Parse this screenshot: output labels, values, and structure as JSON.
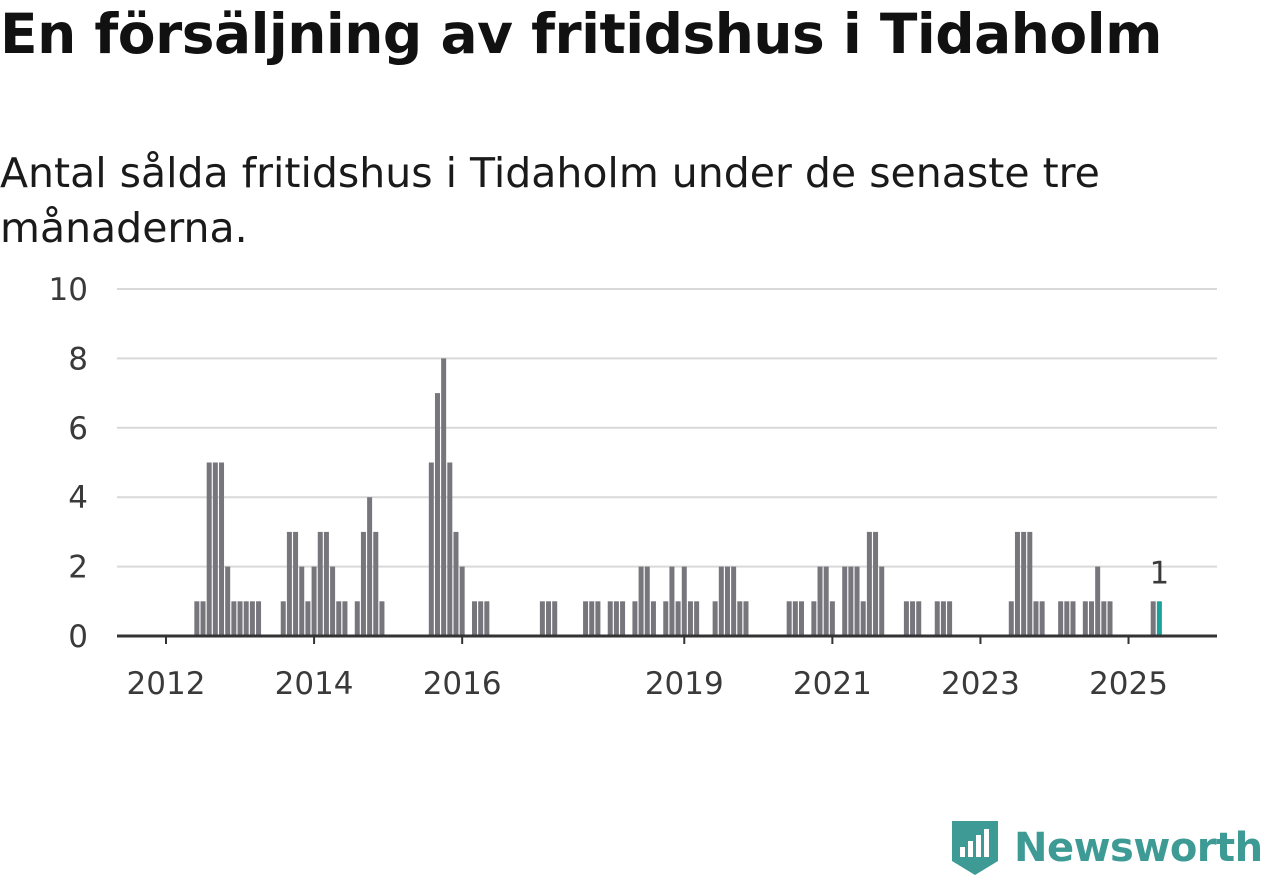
{
  "page": {
    "title": "En försäljning av fritidshus i Tidaholm",
    "subtitle": "Antal sålda fritidshus i Tidaholm under de senaste tre månaderna.",
    "brand": "Newsworthy"
  },
  "colors": {
    "bar": "#77767c",
    "highlight": "#1aa39b",
    "grid": "#d9d9d9",
    "axis": "#333333",
    "brand": "#3d9a94"
  },
  "icons": {
    "brand_logo": "newsworthy-logo-icon"
  },
  "chart_data": {
    "type": "bar",
    "title": "En försäljning av fritidshus i Tidaholm",
    "subtitle": "Antal sålda fritidshus i Tidaholm under de senaste tre månaderna.",
    "xlabel": "",
    "ylabel": "",
    "ylim": [
      0,
      10
    ],
    "y_ticks": [
      0,
      2,
      4,
      6,
      8,
      10
    ],
    "x_ticks": [
      {
        "label": "2012",
        "x": "2012-01"
      },
      {
        "label": "2014",
        "x": "2014-01"
      },
      {
        "label": "2016",
        "x": "2016-01"
      },
      {
        "label": "2019",
        "x": "2019-01"
      },
      {
        "label": "2021",
        "x": "2021-01"
      },
      {
        "label": "2023",
        "x": "2023-01"
      },
      {
        "label": "2025",
        "x": "2025-01"
      }
    ],
    "grid": true,
    "legend": "none",
    "highlight": {
      "x": "2025-06",
      "value": 1,
      "label": "1"
    },
    "series": [
      {
        "values": [
          {
            "x": "2012-06",
            "y": 1
          },
          {
            "x": "2012-07",
            "y": 1
          },
          {
            "x": "2012-08",
            "y": 5
          },
          {
            "x": "2012-09",
            "y": 5
          },
          {
            "x": "2012-10",
            "y": 5
          },
          {
            "x": "2012-11",
            "y": 2
          },
          {
            "x": "2012-12",
            "y": 1
          },
          {
            "x": "2013-01",
            "y": 1
          },
          {
            "x": "2013-02",
            "y": 1
          },
          {
            "x": "2013-03",
            "y": 1
          },
          {
            "x": "2013-04",
            "y": 1
          },
          {
            "x": "2013-08",
            "y": 1
          },
          {
            "x": "2013-09",
            "y": 3
          },
          {
            "x": "2013-10",
            "y": 3
          },
          {
            "x": "2013-11",
            "y": 2
          },
          {
            "x": "2013-12",
            "y": 1
          },
          {
            "x": "2014-01",
            "y": 2
          },
          {
            "x": "2014-02",
            "y": 3
          },
          {
            "x": "2014-03",
            "y": 3
          },
          {
            "x": "2014-04",
            "y": 2
          },
          {
            "x": "2014-05",
            "y": 1
          },
          {
            "x": "2014-06",
            "y": 1
          },
          {
            "x": "2014-08",
            "y": 1
          },
          {
            "x": "2014-09",
            "y": 3
          },
          {
            "x": "2014-10",
            "y": 4
          },
          {
            "x": "2014-11",
            "y": 3
          },
          {
            "x": "2014-12",
            "y": 1
          },
          {
            "x": "2015-08",
            "y": 5
          },
          {
            "x": "2015-09",
            "y": 7
          },
          {
            "x": "2015-10",
            "y": 8
          },
          {
            "x": "2015-11",
            "y": 5
          },
          {
            "x": "2015-12",
            "y": 3
          },
          {
            "x": "2016-01",
            "y": 2
          },
          {
            "x": "2016-03",
            "y": 1
          },
          {
            "x": "2016-04",
            "y": 1
          },
          {
            "x": "2016-05",
            "y": 1
          },
          {
            "x": "2017-02",
            "y": 1
          },
          {
            "x": "2017-03",
            "y": 1
          },
          {
            "x": "2017-04",
            "y": 1
          },
          {
            "x": "2017-09",
            "y": 1
          },
          {
            "x": "2017-10",
            "y": 1
          },
          {
            "x": "2017-11",
            "y": 1
          },
          {
            "x": "2018-01",
            "y": 1
          },
          {
            "x": "2018-02",
            "y": 1
          },
          {
            "x": "2018-03",
            "y": 1
          },
          {
            "x": "2018-05",
            "y": 1
          },
          {
            "x": "2018-06",
            "y": 2
          },
          {
            "x": "2018-07",
            "y": 2
          },
          {
            "x": "2018-08",
            "y": 1
          },
          {
            "x": "2018-10",
            "y": 1
          },
          {
            "x": "2018-11",
            "y": 2
          },
          {
            "x": "2018-12",
            "y": 1
          },
          {
            "x": "2019-01",
            "y": 2
          },
          {
            "x": "2019-02",
            "y": 1
          },
          {
            "x": "2019-03",
            "y": 1
          },
          {
            "x": "2019-06",
            "y": 1
          },
          {
            "x": "2019-07",
            "y": 2
          },
          {
            "x": "2019-08",
            "y": 2
          },
          {
            "x": "2019-09",
            "y": 2
          },
          {
            "x": "2019-10",
            "y": 1
          },
          {
            "x": "2019-11",
            "y": 1
          },
          {
            "x": "2020-06",
            "y": 1
          },
          {
            "x": "2020-07",
            "y": 1
          },
          {
            "x": "2020-08",
            "y": 1
          },
          {
            "x": "2020-10",
            "y": 1
          },
          {
            "x": "2020-11",
            "y": 2
          },
          {
            "x": "2020-12",
            "y": 2
          },
          {
            "x": "2021-01",
            "y": 1
          },
          {
            "x": "2021-03",
            "y": 2
          },
          {
            "x": "2021-04",
            "y": 2
          },
          {
            "x": "2021-05",
            "y": 2
          },
          {
            "x": "2021-06",
            "y": 1
          },
          {
            "x": "2021-07",
            "y": 3
          },
          {
            "x": "2021-08",
            "y": 3
          },
          {
            "x": "2021-09",
            "y": 2
          },
          {
            "x": "2022-01",
            "y": 1
          },
          {
            "x": "2022-02",
            "y": 1
          },
          {
            "x": "2022-03",
            "y": 1
          },
          {
            "x": "2022-06",
            "y": 1
          },
          {
            "x": "2022-07",
            "y": 1
          },
          {
            "x": "2022-08",
            "y": 1
          },
          {
            "x": "2023-06",
            "y": 1
          },
          {
            "x": "2023-07",
            "y": 3
          },
          {
            "x": "2023-08",
            "y": 3
          },
          {
            "x": "2023-09",
            "y": 3
          },
          {
            "x": "2023-10",
            "y": 1
          },
          {
            "x": "2023-11",
            "y": 1
          },
          {
            "x": "2024-02",
            "y": 1
          },
          {
            "x": "2024-03",
            "y": 1
          },
          {
            "x": "2024-04",
            "y": 1
          },
          {
            "x": "2024-06",
            "y": 1
          },
          {
            "x": "2024-07",
            "y": 1
          },
          {
            "x": "2024-08",
            "y": 2
          },
          {
            "x": "2024-09",
            "y": 1
          },
          {
            "x": "2024-10",
            "y": 1
          },
          {
            "x": "2025-05",
            "y": 1
          },
          {
            "x": "2025-06",
            "y": 1
          }
        ]
      }
    ]
  }
}
